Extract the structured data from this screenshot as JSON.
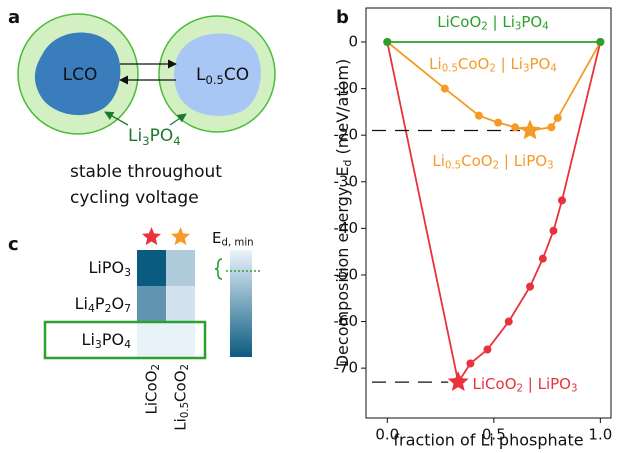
{
  "panel_labels": [
    "a",
    "b",
    "c"
  ],
  "diagram": {
    "left": "LCO",
    "right": [
      "L",
      "0.5",
      "CO"
    ],
    "coating": [
      "Li",
      "3",
      "PO",
      "4"
    ],
    "caption": [
      "stable throughout",
      "cycling voltage"
    ]
  },
  "chart_data": [
    {
      "type": "line",
      "xlabel": "fraction of Li phosphate",
      "ylabel": [
        "Decomposition energy, E",
        "d",
        " (meV/atom)"
      ],
      "xlim": [
        -0.1,
        1.05
      ],
      "ylim": [
        -80.7,
        7.3
      ],
      "xticks": [
        {
          "value": 0,
          "label": "0.0"
        },
        {
          "value": 0.5,
          "label": "0.5"
        },
        {
          "value": 1,
          "label": "1.0"
        }
      ],
      "yticks": [
        0,
        -10,
        -20,
        -30,
        -40,
        -50,
        -60,
        -70
      ],
      "series": [
        {
          "name": [
            "LiCoO",
            "2",
            " | Li",
            "3",
            "PO",
            "4"
          ],
          "color": "#2ca02c",
          "x": [
            0,
            1
          ],
          "values": [
            0,
            0
          ]
        },
        {
          "name": [
            "Li",
            "0.5",
            "CoO",
            "2",
            " | LiPO",
            "3"
          ],
          "color": "#f59b25",
          "x": [
            0,
            0.27,
            0.43,
            0.52,
            0.6,
            0.67,
            0.77,
            0.8,
            1
          ],
          "values": [
            0,
            -10,
            -15.8,
            -17.3,
            -18.3,
            -19,
            -18.3,
            -16.3,
            0
          ],
          "highlight": 5
        },
        {
          "name": [
            "LiCoO",
            "2",
            " | LiPO",
            "3"
          ],
          "color": "#e8323c",
          "x": [
            0,
            0.333,
            0.39,
            0.47,
            0.57,
            0.67,
            0.73,
            0.78,
            0.82,
            1
          ],
          "values": [
            0,
            -73,
            -69,
            -66,
            -60,
            -52.5,
            -46.5,
            -40.5,
            -34,
            0
          ],
          "highlight": 1
        }
      ],
      "annotations": [
        {
          "text": [
            "Li",
            "0.5",
            "CoO",
            "2",
            " | Li",
            "3",
            "PO",
            "4"
          ],
          "color": "#f59b25"
        }
      ]
    },
    {
      "type": "heatmap",
      "rows": [
        [
          "LiPO",
          "3"
        ],
        [
          "Li",
          "4",
          "P",
          "2",
          "O",
          "7"
        ],
        [
          "Li",
          "3",
          "PO",
          "4"
        ]
      ],
      "columns": [
        [
          "LiCoO",
          "2"
        ],
        [
          "Li",
          "0.5",
          "CoO",
          "2"
        ]
      ],
      "values": [
        [
          -73,
          -19
        ],
        [
          -45,
          -8
        ],
        [
          -1,
          -1
        ]
      ],
      "clim": [
        -73,
        0
      ],
      "cmap": [
        "#0b5a80",
        "#eaf4fb"
      ],
      "colorbar_label": [
        "E",
        "d, min"
      ],
      "highlight_row": 2,
      "highlight_color": "#2ca02c",
      "column_markers": [
        "#e8323c",
        "#f59b25"
      ]
    }
  ]
}
